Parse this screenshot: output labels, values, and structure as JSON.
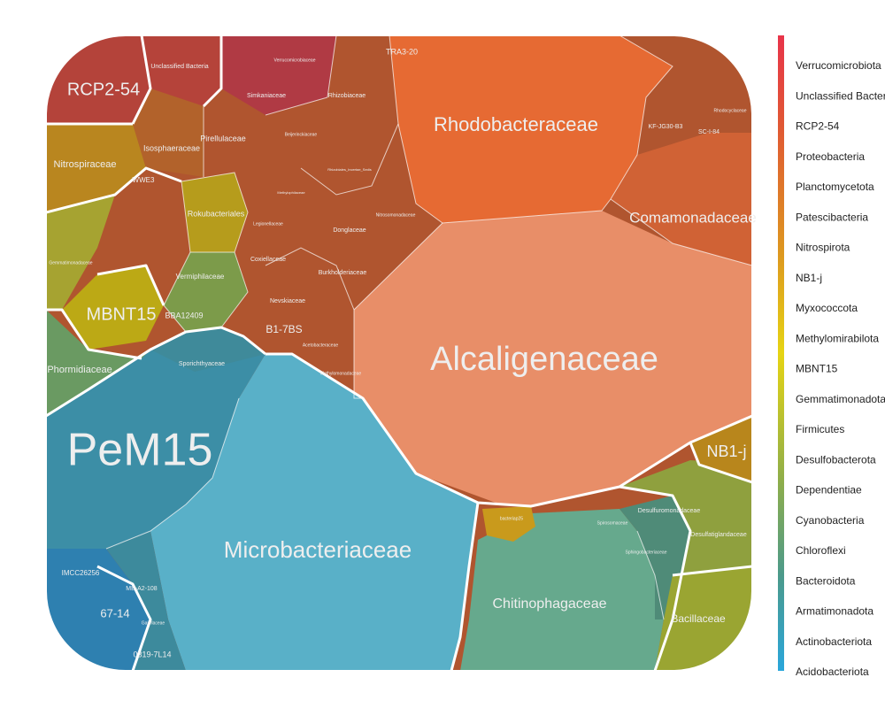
{
  "chart_data": {
    "type": "voronoi-treemap",
    "title": "",
    "legend_position": "right",
    "phyla": [
      {
        "name": "Verrucomicrobiota",
        "color": "#e8344a"
      },
      {
        "name": "Unclassified Bacteria",
        "color": "#e3443f"
      },
      {
        "name": "RCP2-54",
        "color": "#de4f3a"
      },
      {
        "name": "Proteobacteria",
        "color": "#e05a33"
      },
      {
        "name": "Planctomycetota",
        "color": "#e5642c"
      },
      {
        "name": "Patescibacteria",
        "color": "#e6712b"
      },
      {
        "name": "Nitrospirota",
        "color": "#e38626"
      },
      {
        "name": "NB1-j",
        "color": "#dd9a1f"
      },
      {
        "name": "Myxococcota",
        "color": "#d9b01a"
      },
      {
        "name": "Methylomirabilota",
        "color": "#dcc515"
      },
      {
        "name": "MBNT15",
        "color": "#e6d414"
      },
      {
        "name": "Gemmatimonadota",
        "color": "#c6c92a"
      },
      {
        "name": "Firmicutes",
        "color": "#a9b93a"
      },
      {
        "name": "Desulfobacterota",
        "color": "#8fae4a"
      },
      {
        "name": "Dependentiae",
        "color": "#7da85a"
      },
      {
        "name": "Cyanobacteria",
        "color": "#6aa56a"
      },
      {
        "name": "Chloroflexi",
        "color": "#5a9f7a"
      },
      {
        "name": "Bacteroidota",
        "color": "#4c9a8b"
      },
      {
        "name": "Armatimonadota",
        "color": "#3f9aa0"
      },
      {
        "name": "Actinobacteriota",
        "color": "#37a0b8"
      },
      {
        "name": "Acidobacteriota",
        "color": "#2aa6db"
      }
    ],
    "groups": [
      {
        "phylum": "Proteobacteria",
        "families": [
          "Alcaligenaceae",
          "Rhodobacteraceae",
          "Comamonadaceae",
          "Burkholderiaceae",
          "Coxiellaceae",
          "Nevskiaceae",
          "Rhizobiaceae",
          "Beijerinckiaceae",
          "B1-7BS",
          "Nitrosomonadaceae",
          "Legionellaceae",
          "Methylophilaceae",
          "Donglaceae",
          "Rhizobiales_Incertae_Sedis",
          "KF-JG30-B3",
          "SC-I-84",
          "Rhodocyclaceae",
          "TRA3-20",
          "Acetobacteraceae",
          "Methylomonadaceae"
        ]
      },
      {
        "phylum": "Actinobacteriota",
        "families": [
          "PeM15",
          "Microbacteriaceae",
          "Sporichthyaceae",
          "IMCC26256",
          "MB-A2-108",
          "67-14",
          "0319-7L14",
          "Gaiellaceae"
        ]
      },
      {
        "phylum": "Bacteroidota",
        "families": [
          "Chitinophagaceae",
          "Sphingobacteriaceae",
          "Spirosomaceae"
        ]
      },
      {
        "phylum": "Planctomycetota",
        "families": [
          "Isosphaeraceae",
          "Pirellulaceae",
          "WWE3"
        ]
      },
      {
        "phylum": "Verrucomicrobiota",
        "families": [
          "Verrucomicrobiaceae",
          "Simkaniaceae"
        ]
      },
      {
        "phylum": "Firmicutes",
        "families": [
          "Bacillaceae"
        ]
      },
      {
        "phylum": "Desulfobacterota",
        "families": [
          "Desulfuromonadaceae",
          "Desulfatiglandaceae"
        ]
      },
      {
        "phylum": "Cyanobacteria",
        "families": [
          "Phormidiaceae",
          "Vermiphilaceae",
          "BBA12409"
        ]
      },
      {
        "phylum": "Methylomirabilota",
        "families": [
          "Rokubacteriales"
        ]
      },
      {
        "phylum": "Gemmatimonadota",
        "families": [
          "Gemmatimonadaceae"
        ]
      },
      {
        "phylum": "Nitrospirota",
        "families": [
          "Nitrospiraceae"
        ]
      },
      {
        "phylum": "Patescibacteria",
        "families": [
          "bacteriap25"
        ]
      },
      {
        "phylum": "Unclassified Bacteria",
        "families": [
          "Unclassified Bacteria"
        ]
      },
      {
        "phylum": "RCP2-54",
        "families": [
          "RCP2-54"
        ]
      },
      {
        "phylum": "MBNT15",
        "families": [
          "MBNT15"
        ]
      },
      {
        "phylum": "NB1-j",
        "families": [
          "NB1-j"
        ]
      }
    ]
  }
}
